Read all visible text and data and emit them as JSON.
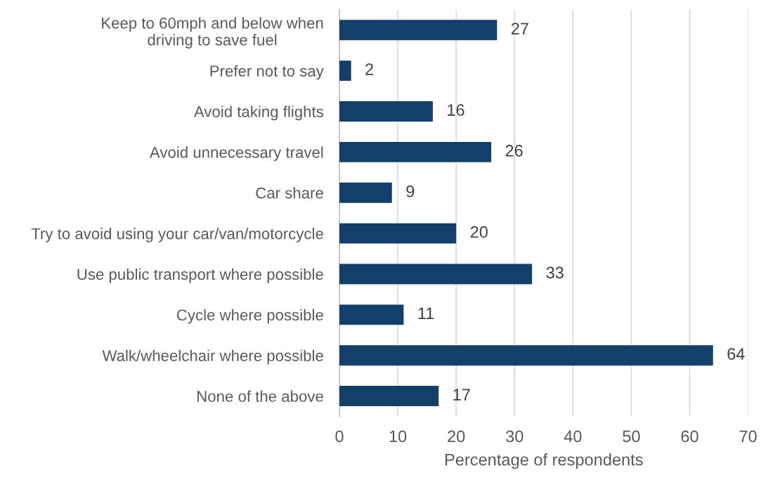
{
  "chart_data": {
    "type": "bar",
    "orientation": "horizontal",
    "categories": [
      "Keep to 60mph and below when\ndriving to save fuel",
      "Prefer not to say",
      "Avoid taking flights",
      "Avoid unnecessary travel",
      "Car share",
      "Try to avoid using your car/van/motorcycle",
      "Use public transport where possible",
      "Cycle where possible",
      "Walk/wheelchair where possible",
      "None of the above"
    ],
    "values": [
      27,
      2,
      16,
      26,
      9,
      20,
      33,
      11,
      64,
      17
    ],
    "color": "#133f6b",
    "xlabel": "Percentage of respondents",
    "xlim": [
      0,
      70
    ],
    "xticks": [
      0,
      10,
      20,
      30,
      40,
      50,
      60,
      70
    ],
    "grid": "x",
    "data_labels": true
  }
}
